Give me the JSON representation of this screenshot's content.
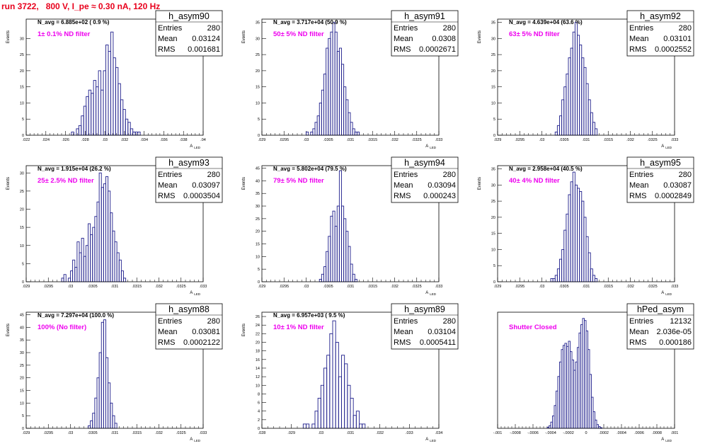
{
  "header": {
    "title": "run 3722,   800 V, I_pe ≈ 0.30 nA, 120 Hz"
  },
  "chart_data": [
    {
      "type": "bar",
      "name": "h_asym90",
      "navg": "N_avg = 6.885e+02 ( 0.9 %)",
      "filter": "1± 0.1% ND filter",
      "stats": {
        "entries": "280",
        "mean": "0.03124",
        "rms": "0.001681"
      },
      "xlim": [
        0.022,
        0.04
      ],
      "ylim": [
        0,
        36
      ],
      "xlabel": "A",
      "xlabel_sub": "LED",
      "ylabel": "Events",
      "xticks": [
        0.022,
        0.024,
        0.026,
        0.028,
        0.03,
        0.032,
        0.034,
        0.036,
        0.038,
        0.04
      ],
      "yticks": [
        0,
        5,
        10,
        15,
        20,
        25,
        30
      ],
      "bins": {
        "start": 0.0266,
        "width": 0.00025,
        "values": [
          1,
          0,
          2,
          3,
          6,
          9,
          12,
          14,
          13,
          17,
          15,
          20,
          14,
          20,
          28,
          26,
          32,
          24,
          21,
          16,
          11,
          8,
          5,
          4,
          2,
          1,
          1,
          1
        ]
      }
    },
    {
      "type": "bar",
      "name": "h_asym91",
      "navg": "N_avg = 3.717e+04 (50.9 %)",
      "filter": "50± 5% ND filter",
      "stats": {
        "entries": "280",
        "mean": "0.0308",
        "rms": "0.0002671"
      },
      "xlim": [
        0.029,
        0.033
      ],
      "ylim": [
        0,
        36
      ],
      "xlabel": "A",
      "xlabel_sub": "LED",
      "ylabel": "Events",
      "xticks": [
        0.029,
        0.0295,
        0.03,
        0.0305,
        0.031,
        0.0315,
        0.032,
        0.0325,
        0.033
      ],
      "yticks": [
        0,
        5,
        10,
        15,
        20,
        25,
        30,
        35
      ],
      "bins": {
        "start": 0.03,
        "width": 5e-05,
        "values": [
          1,
          0,
          1,
          2,
          4,
          6,
          10,
          14,
          19,
          27,
          30,
          32,
          35,
          32,
          26,
          27,
          22,
          15,
          11,
          7,
          4,
          2,
          1,
          1
        ]
      }
    },
    {
      "type": "bar",
      "name": "h_asym92",
      "navg": "N_avg = 4.639e+04 (63.6 %)",
      "filter": "63± 5% ND filter",
      "stats": {
        "entries": "280",
        "mean": "0.03101",
        "rms": "0.0002552"
      },
      "xlim": [
        0.029,
        0.033
      ],
      "ylim": [
        0,
        36
      ],
      "xlabel": "A",
      "xlabel_sub": "LED",
      "ylabel": "Events",
      "xticks": [
        0.029,
        0.0295,
        0.03,
        0.0305,
        0.031,
        0.0315,
        0.032,
        0.0325,
        0.033
      ],
      "yticks": [
        0,
        5,
        10,
        15,
        20,
        25,
        30,
        35
      ],
      "bins": {
        "start": 0.0303,
        "width": 5e-05,
        "values": [
          1,
          3,
          6,
          11,
          15,
          19,
          24,
          27,
          32,
          35,
          31,
          28,
          24,
          21,
          16,
          11,
          7,
          4,
          2
        ]
      }
    },
    {
      "type": "bar",
      "name": "h_asym93",
      "navg": "N_avg = 1.915e+04 (26.2 %)",
      "filter": "25± 2.5% ND filter",
      "stats": {
        "entries": "280",
        "mean": "0.03097",
        "rms": "0.0003504"
      },
      "xlim": [
        0.029,
        0.033
      ],
      "ylim": [
        0,
        32
      ],
      "xlabel": "A",
      "xlabel_sub": "LED",
      "ylabel": "Events",
      "xticks": [
        0.029,
        0.0295,
        0.03,
        0.0305,
        0.031,
        0.0315,
        0.032,
        0.0325,
        0.033
      ],
      "yticks": [
        0,
        5,
        10,
        15,
        20,
        25,
        30
      ],
      "bins": {
        "start": 0.0298,
        "width": 5e-05,
        "values": [
          1,
          2,
          0,
          1,
          3,
          6,
          4,
          11,
          8,
          12,
          7,
          10,
          16,
          13,
          15,
          18,
          22,
          30,
          26,
          27,
          29,
          25,
          19,
          14,
          11,
          8,
          6,
          3,
          1
        ]
      }
    },
    {
      "type": "bar",
      "name": "h_asym94",
      "navg": "N_avg = 5.802e+04 (79.5 %)",
      "filter": "79± 5% ND filter",
      "stats": {
        "entries": "280",
        "mean": "0.03094",
        "rms": "0.000243"
      },
      "xlim": [
        0.029,
        0.033
      ],
      "ylim": [
        0,
        46
      ],
      "xlabel": "A",
      "xlabel_sub": "LED",
      "ylabel": "Events",
      "xticks": [
        0.029,
        0.0295,
        0.03,
        0.0305,
        0.031,
        0.0315,
        0.032,
        0.0325,
        0.033
      ],
      "yticks": [
        0,
        5,
        10,
        15,
        20,
        25,
        30,
        35,
        40,
        45
      ],
      "bins": {
        "start": 0.0303,
        "width": 5e-05,
        "values": [
          1,
          3,
          6,
          12,
          18,
          26,
          28,
          22,
          30,
          44,
          30,
          25,
          20,
          14,
          7,
          3,
          1
        ]
      }
    },
    {
      "type": "bar",
      "name": "h_asym95",
      "navg": "N_avg = 2.958e+04 (40.5 %)",
      "filter": "40± 4% ND filter",
      "stats": {
        "entries": "280",
        "mean": "0.03087",
        "rms": "0.0002849"
      },
      "xlim": [
        0.029,
        0.033
      ],
      "ylim": [
        0,
        36
      ],
      "xlabel": "A",
      "xlabel_sub": "LED",
      "ylabel": "Events",
      "xticks": [
        0.029,
        0.0295,
        0.03,
        0.0305,
        0.031,
        0.0315,
        0.032,
        0.0325,
        0.033
      ],
      "yticks": [
        0,
        5,
        10,
        15,
        20,
        25,
        30,
        35
      ],
      "bins": {
        "start": 0.0302,
        "width": 5e-05,
        "values": [
          1,
          1,
          2,
          4,
          7,
          10,
          16,
          21,
          27,
          31,
          34,
          30,
          29,
          28,
          25,
          20,
          14,
          9,
          4,
          2,
          1
        ]
      }
    },
    {
      "type": "bar",
      "name": "h_asym88",
      "navg": "N_avg = 7.297e+04 (100.0 %)",
      "filter": "100% (No filter)",
      "stats": {
        "entries": "280",
        "mean": "0.03081",
        "rms": "0.0002122"
      },
      "xlim": [
        0.029,
        0.033
      ],
      "ylim": [
        0,
        46
      ],
      "xlabel": "A",
      "xlabel_sub": "LED",
      "ylabel": "Events",
      "xticks": [
        0.029,
        0.0295,
        0.03,
        0.0305,
        0.031,
        0.0315,
        0.032,
        0.0325,
        0.033
      ],
      "yticks": [
        0,
        5,
        10,
        15,
        20,
        25,
        30,
        35,
        40,
        45
      ],
      "bins": {
        "start": 0.0304,
        "width": 5e-05,
        "values": [
          1,
          3,
          6,
          12,
          20,
          30,
          42,
          43,
          28,
          18,
          10,
          5,
          2
        ]
      }
    },
    {
      "type": "bar",
      "name": "h_asym89",
      "navg": "N_avg = 6.957e+03 ( 9.5 %)",
      "filter": "10± 1% ND filter",
      "stats": {
        "entries": "280",
        "mean": "0.03104",
        "rms": "0.0005411"
      },
      "xlim": [
        0.028,
        0.034
      ],
      "ylim": [
        0,
        27
      ],
      "xlabel": "A",
      "xlabel_sub": "LED",
      "ylabel": "Events",
      "xticks": [
        0.028,
        0.029,
        0.03,
        0.031,
        0.032,
        0.033,
        0.034
      ],
      "yticks": [
        0,
        2,
        4,
        6,
        8,
        10,
        12,
        14,
        16,
        18,
        20,
        22,
        24,
        26
      ],
      "bins": {
        "start": 0.0294,
        "width": 0.0001,
        "values": [
          1,
          1,
          0,
          1,
          4,
          7,
          10,
          14,
          17,
          22,
          25,
          20,
          12,
          17,
          15,
          10,
          7,
          3,
          4,
          1,
          1
        ]
      }
    },
    {
      "type": "bar",
      "name": "hPed_asym",
      "navg": "",
      "filter": "Shutter Closed",
      "stats": {
        "entries": "12132",
        "mean": "2.036e-05",
        "rms": "0.000186"
      },
      "xlim": [
        -0.001,
        0.001
      ],
      "ylim": [
        0,
        560
      ],
      "xlabel": "A",
      "xlabel_sub": "LED",
      "ylabel": "",
      "xticks": [
        -0.001,
        -0.0008,
        -0.0006,
        -0.0004,
        -0.0002,
        0,
        0.0002,
        0.0004,
        0.0006,
        0.0008,
        0.001
      ],
      "yticks": [],
      "bins": {
        "start": -0.00044,
        "width": 2e-05,
        "values": [
          5,
          12,
          30,
          60,
          110,
          180,
          250,
          320,
          380,
          400,
          410,
          395,
          420,
          370,
          330,
          280,
          320,
          390,
          460,
          500,
          530,
          520,
          470,
          380,
          260,
          150,
          80,
          40,
          18,
          8,
          3
        ]
      }
    }
  ]
}
